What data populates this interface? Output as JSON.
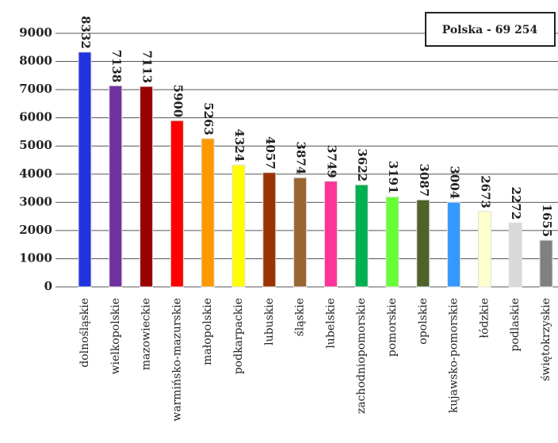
{
  "chart_data": {
    "type": "bar",
    "annotation": "Polska - 69 254",
    "categories": [
      "dolnośląskie",
      "wielkopolskie",
      "mazowieckie",
      "warmińsko-mazurskie",
      "małopolskie",
      "podkarpackie",
      "lubuskie",
      "śląskie",
      "lubelskie",
      "zachodniopomorskie",
      "pomorskie",
      "opolskie",
      "kujawsko-pomorskie",
      "łódzkie",
      "podlaskie",
      "świętokrzyskie"
    ],
    "values": [
      8332,
      7138,
      7113,
      5900,
      5263,
      4324,
      4057,
      3874,
      3749,
      3622,
      3191,
      3087,
      3004,
      2673,
      2272,
      1655
    ],
    "colors": [
      "#2233dd",
      "#7030a0",
      "#990000",
      "#ff0000",
      "#ff9900",
      "#ffff00",
      "#993300",
      "#996633",
      "#ff3399",
      "#00b050",
      "#66ff33",
      "#4f6228",
      "#3399ff",
      "#ffffcc",
      "#d9d9d9",
      "#808080"
    ],
    "ylim": [
      0,
      9000
    ],
    "yticks": [
      0,
      1000,
      2000,
      3000,
      4000,
      5000,
      6000,
      7000,
      8000,
      9000
    ],
    "grid": true
  }
}
